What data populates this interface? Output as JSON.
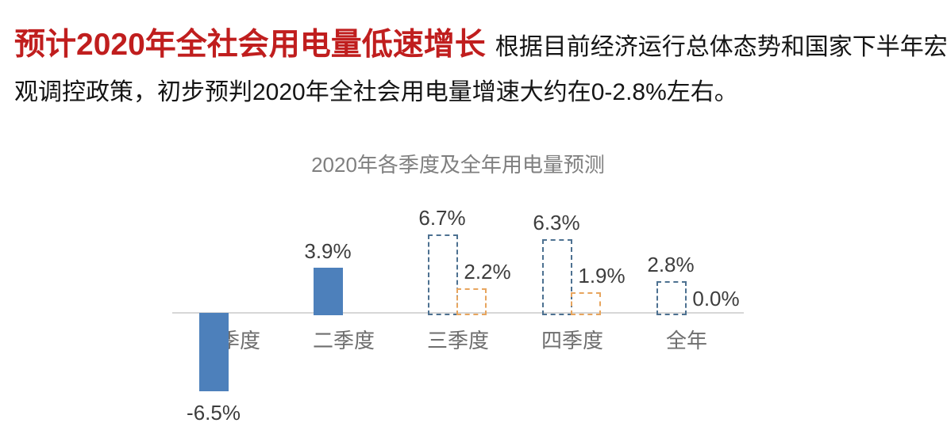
{
  "header": {
    "headline": "预计2020年全社会用电量低速增长",
    "headline_color": "#c01e1e",
    "body_line1": "根据目前经济运行总体态势和国家下半年宏",
    "body_line2": "观调控政策，初步预判2020年全社会用电量增速大约在0-2.8%左右。"
  },
  "chart_data": {
    "type": "bar",
    "title": "2020年各季度及全年用电量预测",
    "categories": [
      "一季度",
      "二季度",
      "三季度",
      "四季度",
      "全年"
    ],
    "unit": "%",
    "series": [
      {
        "name": "blue",
        "values": [
          -6.5,
          3.9,
          6.7,
          6.3,
          2.8
        ],
        "styles": [
          "solid",
          "solid",
          "dashed",
          "dashed",
          "dashed"
        ],
        "solid_color": "#4d80bb",
        "dashed_color": "#4d7191"
      },
      {
        "name": "orange",
        "values": [
          null,
          null,
          2.2,
          1.9,
          0.0
        ],
        "styles": [
          null,
          null,
          "dashed",
          "dashed",
          "dashed"
        ],
        "dashed_color": "#e7a55e"
      }
    ],
    "value_labels": {
      "blue": [
        "-6.5%",
        "3.9%",
        "6.7%",
        "6.3%",
        "2.8%"
      ],
      "orange": [
        null,
        null,
        "2.2%",
        "1.9%",
        "0.0%"
      ]
    },
    "axis": {
      "baseline_value": 0,
      "line_color": "#d7d7d7",
      "grid": false,
      "legend": false
    },
    "title_color": "#7f7f7f",
    "category_label_color": "#6e6e6e",
    "value_label_color": "#3d3d3d"
  }
}
